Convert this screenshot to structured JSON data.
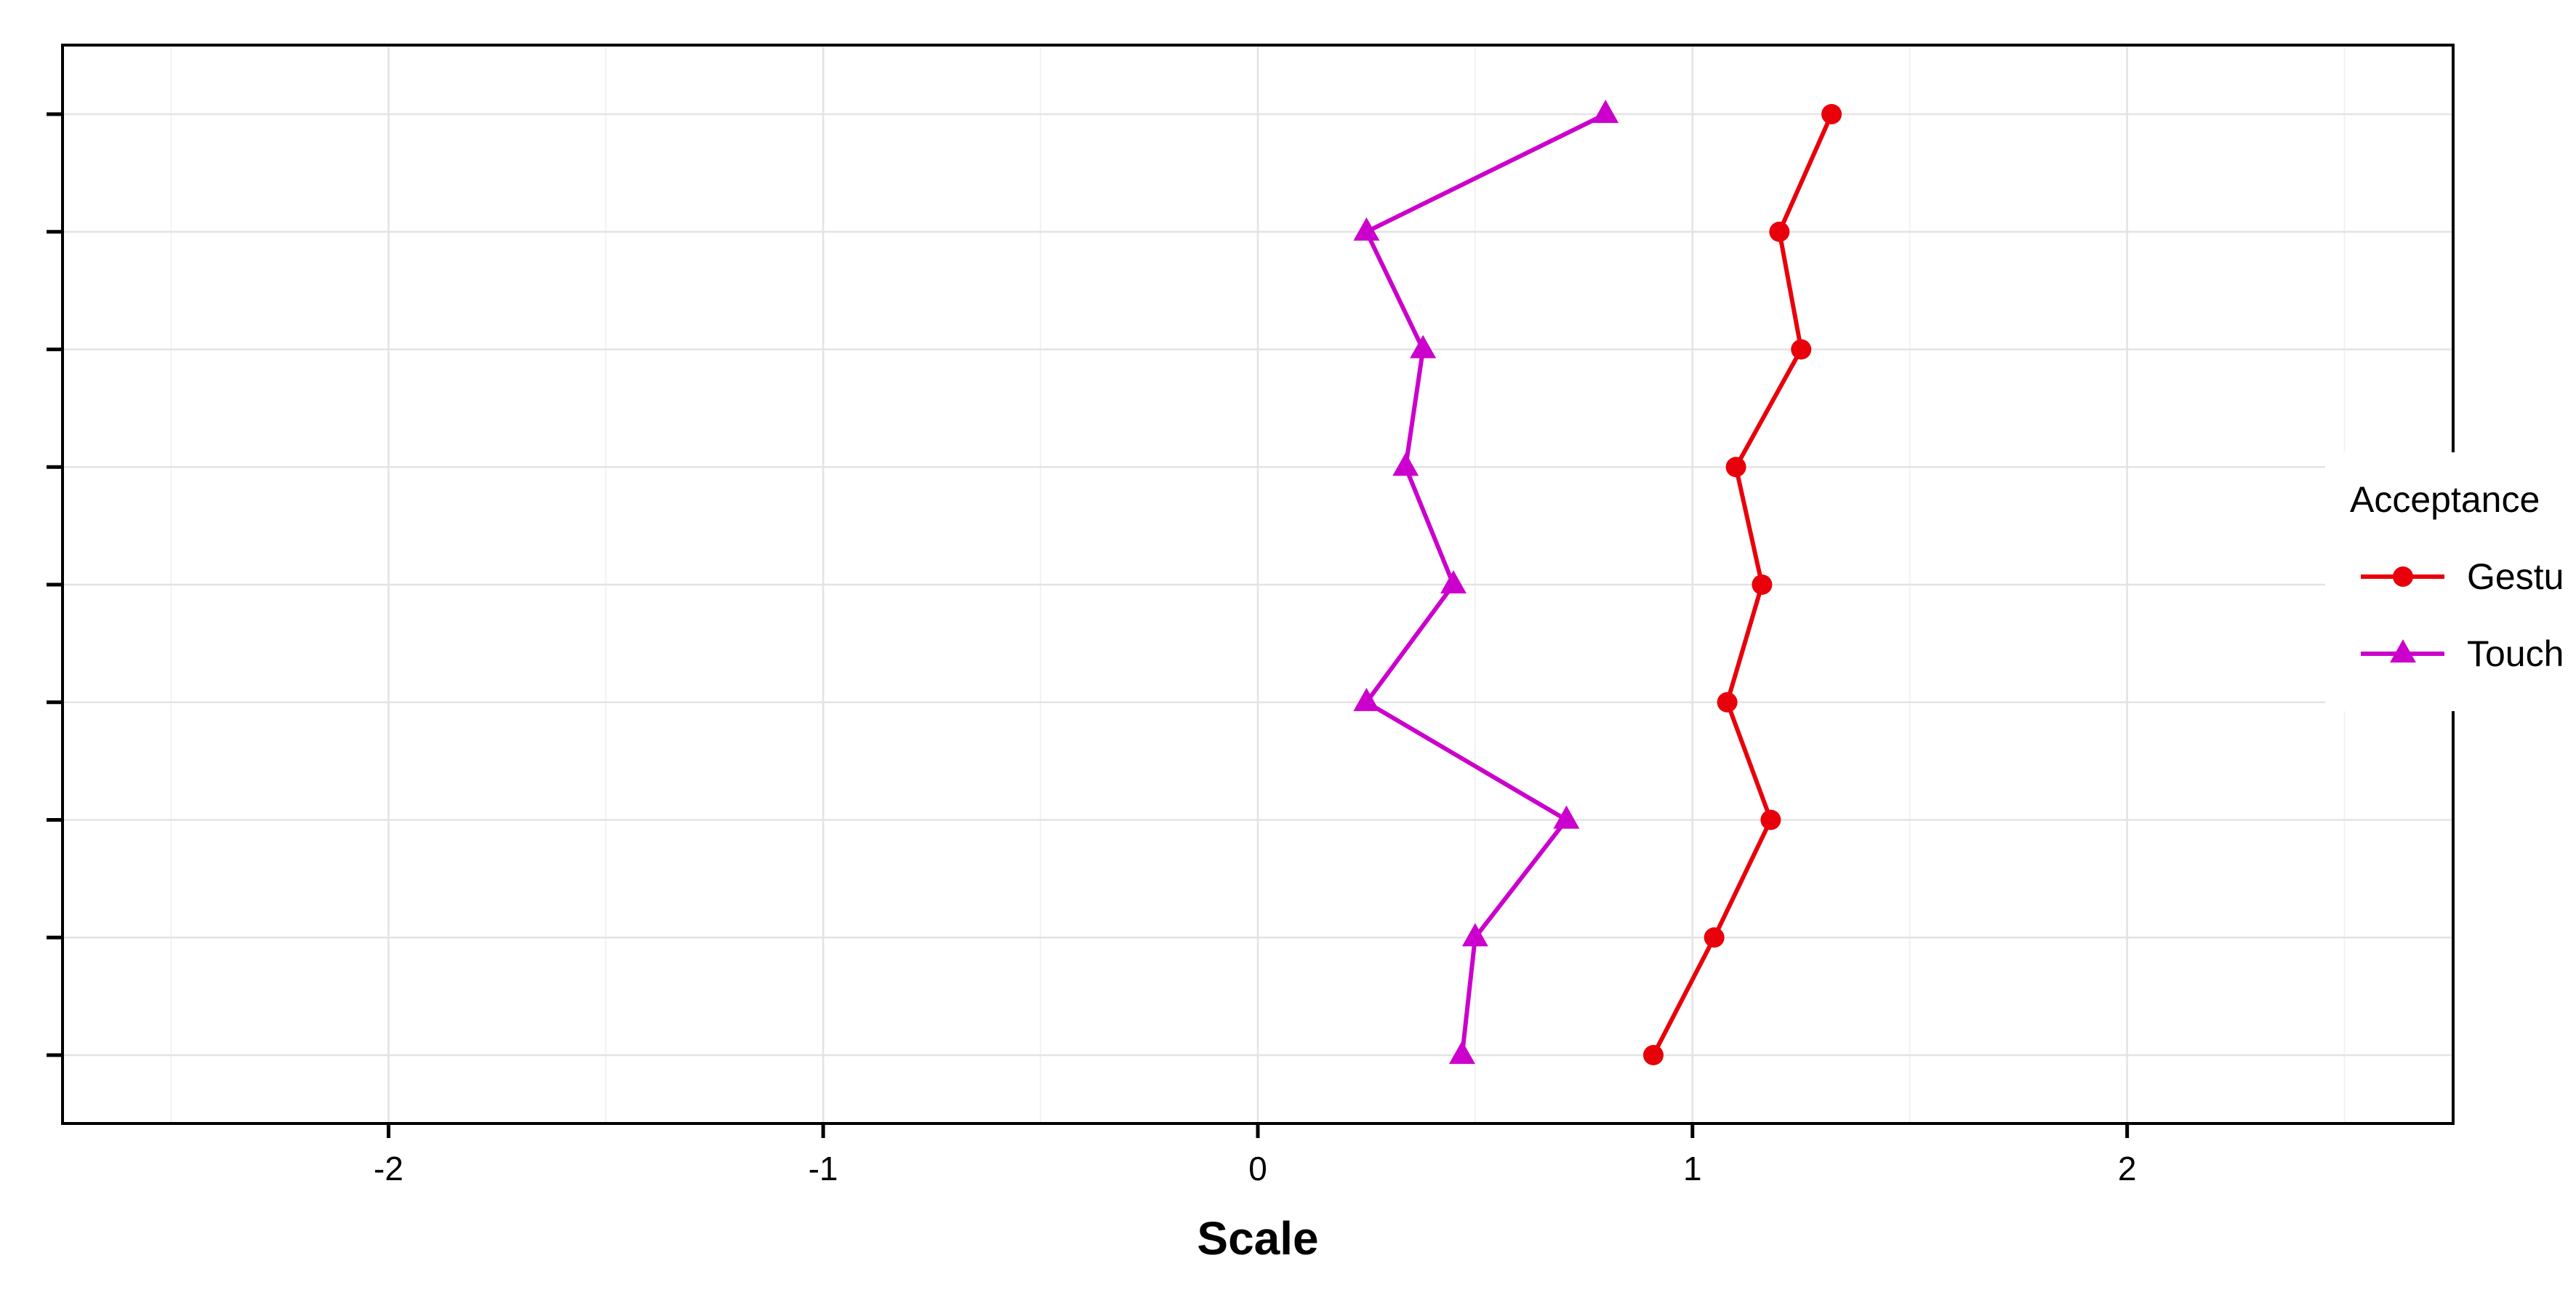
{
  "chart_data": {
    "type": "line",
    "orientation": "horizontal-values",
    "title": "",
    "xlabel": "Scale",
    "ylabel": "",
    "xlim": [
      -2.75,
      2.75
    ],
    "x_ticks": [
      -2,
      -1,
      0,
      1,
      2
    ],
    "x_tick_labels": [
      "-2",
      "-1",
      "0",
      "1",
      "2"
    ],
    "categories_count": 9,
    "grid": true,
    "legend": {
      "title": "Acceptance",
      "placement": "right"
    },
    "series": [
      {
        "name": "Gestu",
        "marker": "circle",
        "color": "#e8000b",
        "values": [
          1.32,
          1.2,
          1.25,
          1.1,
          1.16,
          1.08,
          1.18,
          1.05,
          0.91
        ]
      },
      {
        "name": "Touch",
        "marker": "triangle",
        "color": "#cc00cc",
        "values": [
          0.8,
          0.25,
          0.38,
          0.34,
          0.45,
          0.25,
          0.71,
          0.5,
          0.47
        ]
      }
    ]
  }
}
